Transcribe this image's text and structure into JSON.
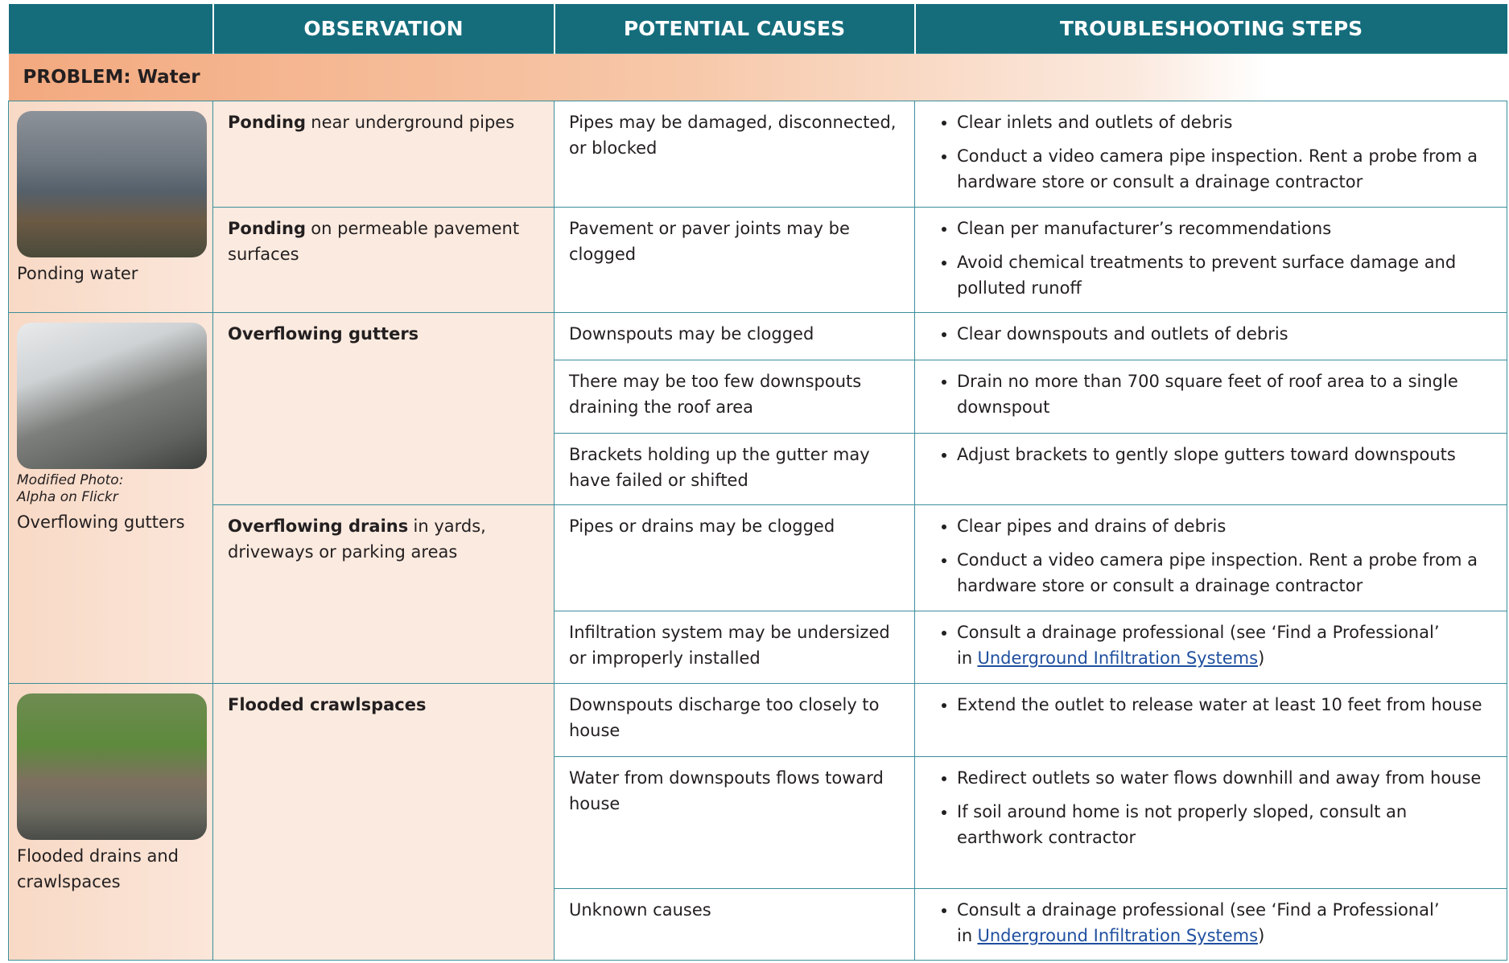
{
  "header": {
    "columns": [
      "OBSERVATION",
      "POTENTIAL CAUSES",
      "TROUBLESHOOTING STEPS"
    ]
  },
  "problem": "PROBLEM: Water",
  "groups": [
    {
      "image_caption": "Ponding water",
      "observations": [
        {
          "bold": "Ponding",
          "text": "near underground pipes",
          "causes": [
            {
              "cause": "Pipes may be damaged, disconnected, or blocked",
              "steps": [
                "Clear inlets and outlets of debris",
                "Conduct a video camera pipe inspection. Rent a probe from a hardware store or consult a drainage contractor"
              ]
            }
          ]
        },
        {
          "bold": "Ponding",
          "text": "on permeable pavement surfaces",
          "causes": [
            {
              "cause": "Pavement or paver joints may be clogged",
              "steps": [
                "Clean per manufacturer’s recommendations",
                "Avoid chemical treatments to prevent surface damage and polluted runoff"
              ]
            }
          ]
        }
      ]
    },
    {
      "image_credit": [
        "Modified Photo:",
        "Alpha on Flickr"
      ],
      "image_caption": "Overflowing gutters",
      "observations": [
        {
          "bold": "Overflowing gutters",
          "causes": [
            {
              "cause": "Downspouts may be clogged",
              "steps": [
                "Clear downspouts and outlets of debris"
              ]
            },
            {
              "cause": "There may be too few downspouts draining the roof area",
              "steps": [
                "Drain no more than 700 square feet of roof area to a single downspout"
              ]
            },
            {
              "cause": "Brackets holding up the gutter may have failed or shifted",
              "steps": [
                "Adjust brackets to gently slope gutters toward downspouts"
              ]
            }
          ]
        },
        {
          "bold": "Overflowing drains",
          "text": "in yards, driveways or parking areas",
          "causes": [
            {
              "cause": "Pipes or drains may be clogged",
              "steps": [
                "Clear pipes and drains of debris",
                "Conduct a video camera pipe inspection. Rent a probe from a hardware store or consult a drainage contractor"
              ]
            },
            {
              "cause": "Infiltration system may be undersized or improperly installed",
              "steps": [
                {
                  "text": "Consult a drainage professional (see ‘Find a Professional’ in",
                  "link": "Underground Infiltration Systems",
                  "after": ")"
                }
              ]
            }
          ]
        }
      ]
    },
    {
      "image_caption": "Flooded drains and crawlspaces",
      "observations": [
        {
          "bold": "Flooded crawlspaces",
          "causes": [
            {
              "cause": "Downspouts discharge too closely to house",
              "steps": [
                "Extend the outlet to release water at least 10 feet from house"
              ]
            },
            {
              "cause": "Water from downspouts flows toward house",
              "steps": [
                "Redirect outlets so water flows downhill and away from house",
                "If soil around home is not properly sloped, consult an earthwork contractor"
              ]
            },
            {
              "cause": "Unknown causes",
              "steps": [
                {
                  "text": "Consult a drainage professional (see ‘Find a Professional’ in",
                  "link": "Underground Infiltration Systems",
                  "after": ")"
                }
              ]
            }
          ]
        }
      ]
    }
  ]
}
